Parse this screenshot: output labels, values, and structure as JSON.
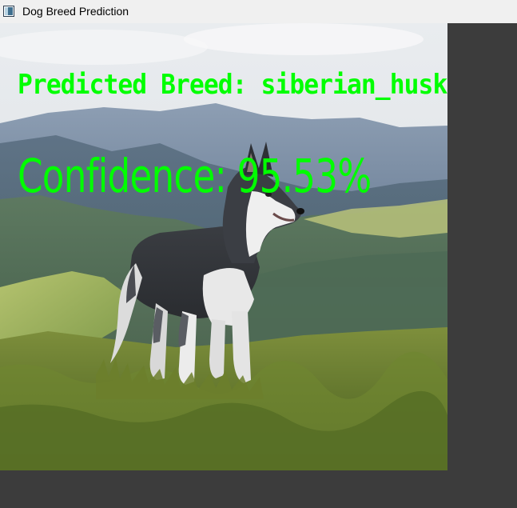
{
  "window": {
    "title": "Dog Breed Prediction",
    "icon": "window-app-icon"
  },
  "overlay": {
    "breed_text": "Predicted Breed: siberian_husky",
    "confidence_text": "Confidence: 95.53%",
    "text_color": "#00ff00"
  },
  "image": {
    "subject": "siberian husky standing on grassy mountain hillside"
  },
  "colors": {
    "background": "#3a3a3a",
    "titlebar": "#f0f0f0"
  }
}
